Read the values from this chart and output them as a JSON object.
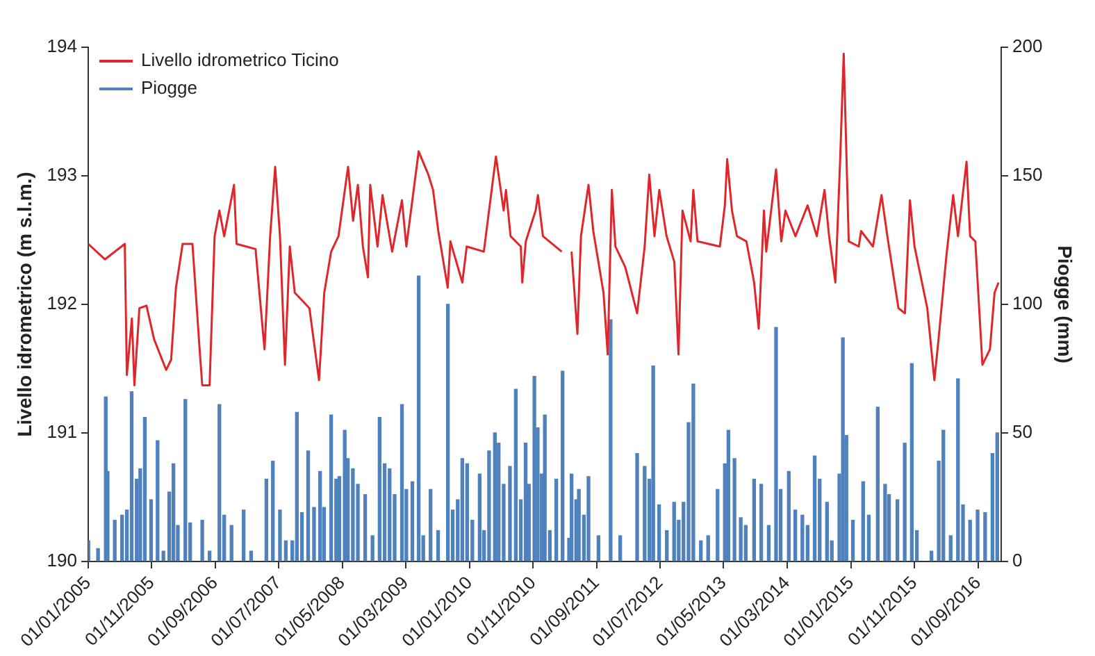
{
  "chart_data": {
    "type": "line",
    "ylabel": "Livello idrometrico (m s.l.m.)",
    "y2label": "Piogge (mm)",
    "xlim": [
      "2005-01-01",
      "2016-12-20"
    ],
    "xticks": [
      {
        "value": "2005-01-01",
        "label": "01/01/2005"
      },
      {
        "value": "2005-11-01",
        "label": "01/11/2005"
      },
      {
        "value": "2006-09-01",
        "label": "01/09/2006"
      },
      {
        "value": "2007-07-01",
        "label": "01/07/2007"
      },
      {
        "value": "2008-05-01",
        "label": "01/05/2008"
      },
      {
        "value": "2009-03-01",
        "label": "01/03/2009"
      },
      {
        "value": "2010-01-01",
        "label": "01/01/2010"
      },
      {
        "value": "2010-11-01",
        "label": "01/11/2010"
      },
      {
        "value": "2011-09-01",
        "label": "01/09/2011"
      },
      {
        "value": "2012-07-01",
        "label": "01/07/2012"
      },
      {
        "value": "2013-05-01",
        "label": "01/05/2013"
      },
      {
        "value": "2014-03-01",
        "label": "01/03/2014"
      },
      {
        "value": "2015-01-01",
        "label": "01/01/2015"
      },
      {
        "value": "2015-11-01",
        "label": "01/11/2015"
      },
      {
        "value": "2016-09-01",
        "label": "01/09/2016"
      }
    ],
    "ylim": [
      190,
      194
    ],
    "yticks": [
      190,
      191,
      192,
      193,
      194
    ],
    "y2lim": [
      0,
      200
    ],
    "y2ticks": [
      0,
      50,
      100,
      150,
      200
    ],
    "grid": false,
    "legend": "top left",
    "marker": "none",
    "line_style": "solid",
    "series": [
      {
        "name": "Livello idrometrico Ticino",
        "color": "#e0262b",
        "x": [
          "2005-01-01",
          "2005-03-22",
          "2005-06-25",
          "2005-07-05",
          "2005-07-29",
          "2005-08-10",
          "2005-09-03",
          "2005-10-07",
          "2005-11-12",
          "2006-01-09",
          "2006-02-02",
          "2006-02-25",
          "2006-03-29",
          "2006-05-15",
          "2006-06-20",
          "2006-07-01",
          "2006-08-05",
          "2006-08-29",
          "2006-09-21",
          "2006-10-14",
          "2006-11-30",
          "2006-12-12",
          "2007-03-13",
          "2007-04-25",
          "2007-05-22",
          "2007-06-15",
          "2007-07-08",
          "2007-08-01",
          "2007-08-24",
          "2007-09-17",
          "2007-11-26",
          "2008-01-11",
          "2008-02-05",
          "2008-03-09",
          "2008-04-13",
          "2008-05-29",
          "2008-06-22",
          "2008-07-15",
          "2008-08-08",
          "2008-09-01",
          "2008-09-12",
          "2008-10-17",
          "2008-11-10",
          "2008-12-26",
          "2009-02-11",
          "2009-03-04",
          "2009-05-02",
          "2009-06-17",
          "2009-07-10",
          "2009-08-04",
          "2009-09-18",
          "2009-10-01",
          "2009-11-27",
          "2009-12-18",
          "2010-03-10",
          "2010-04-04",
          "2010-05-07",
          "2010-06-13",
          "2010-06-24",
          "2010-07-16",
          "2010-09-03",
          "2010-09-10",
          "2010-09-27",
          "2010-11-13",
          "2010-11-24",
          "2010-12-18",
          "2011-03-18",
          "2011-04-15",
          "2011-05-04",
          "2011-06-01",
          "2011-06-18",
          "2011-07-24",
          "2011-08-16",
          "2011-10-04",
          "2011-10-24",
          "2011-11-13",
          "2011-11-30",
          "2012-01-16",
          "2012-03-13",
          "2012-04-18",
          "2012-05-10",
          "2012-06-04",
          "2012-06-27",
          "2012-08-01",
          "2012-09-07",
          "2012-09-27",
          "2012-10-16",
          "2012-11-24",
          "2012-12-07",
          "2012-12-27",
          "2013-04-13",
          "2013-05-07",
          "2013-05-18",
          "2013-06-10",
          "2013-07-04",
          "2013-08-18",
          "2013-09-24",
          "2013-10-16",
          "2013-11-10",
          "2013-11-21",
          "2014-01-07",
          "2014-02-01",
          "2014-02-21",
          "2014-04-10",
          "2014-06-07",
          "2014-07-21",
          "2014-08-27",
          "2014-09-18",
          "2014-10-18",
          "2014-11-10",
          "2014-11-27",
          "2014-12-21",
          "2015-02-07",
          "2015-02-18",
          "2015-04-16",
          "2015-05-27",
          "2015-06-24",
          "2015-08-16",
          "2015-09-16",
          "2015-10-10",
          "2015-11-01",
          "2016-01-01",
          "2016-02-04",
          "2016-02-24",
          "2016-04-01",
          "2016-05-04",
          "2016-05-27",
          "2016-07-07",
          "2016-07-24",
          "2016-08-18",
          "2016-09-21",
          "2016-10-27",
          "2016-11-18",
          "2016-12-07"
        ],
        "values": [
          192.47,
          192.35,
          192.47,
          191.45,
          191.89,
          191.37,
          191.97,
          191.99,
          191.73,
          191.49,
          191.57,
          192.13,
          192.47,
          192.47,
          191.61,
          191.37,
          191.37,
          192.53,
          192.73,
          192.53,
          192.93,
          192.47,
          192.43,
          191.65,
          192.53,
          193.07,
          192.53,
          191.53,
          192.45,
          192.09,
          191.97,
          191.41,
          192.09,
          192.41,
          192.53,
          193.07,
          192.65,
          192.93,
          192.45,
          192.21,
          192.93,
          192.45,
          192.85,
          192.41,
          192.81,
          192.45,
          193.19,
          193.01,
          192.89,
          192.57,
          192.13,
          192.49,
          192.17,
          192.45,
          192.41,
          192.73,
          193.15,
          192.73,
          192.89,
          192.53,
          192.45,
          192.17,
          192.49,
          192.73,
          192.85,
          192.53,
          192.41,
          null,
          192.41,
          191.77,
          192.53,
          192.93,
          192.57,
          192.09,
          191.61,
          192.89,
          192.45,
          192.29,
          191.93,
          192.45,
          193.01,
          192.53,
          192.89,
          192.53,
          192.33,
          191.61,
          192.73,
          192.49,
          192.89,
          192.49,
          192.45,
          192.77,
          193.13,
          192.73,
          192.53,
          192.49,
          192.17,
          191.81,
          192.73,
          192.41,
          193.05,
          192.49,
          192.73,
          192.53,
          192.77,
          192.53,
          192.89,
          192.53,
          192.17,
          193.13,
          193.95,
          192.49,
          192.45,
          192.57,
          192.45,
          192.85,
          192.53,
          191.97,
          191.93,
          192.81,
          192.45,
          191.97,
          191.41,
          191.73,
          192.37,
          192.85,
          192.53,
          193.11,
          192.53,
          192.49,
          191.53,
          191.65,
          192.09,
          192.17
        ]
      },
      {
        "name": "Piogge",
        "type": "bar",
        "axis": "y2",
        "color": "#4f81bd",
        "x": [
          "2005-01-02",
          "2005-02-17",
          "2005-03-26",
          "2005-04-04",
          "2005-05-08",
          "2005-06-12",
          "2005-07-05",
          "2005-07-28",
          "2005-08-21",
          "2005-09-07",
          "2005-09-29",
          "2005-10-29",
          "2005-11-29",
          "2005-12-27",
          "2006-01-24",
          "2006-02-13",
          "2006-03-06",
          "2006-04-11",
          "2006-05-04",
          "2006-07-01",
          "2006-08-05",
          "2006-09-21",
          "2006-10-14",
          "2006-11-18",
          "2007-01-15",
          "2007-02-20",
          "2007-05-04",
          "2007-06-04",
          "2007-07-08",
          "2007-08-05",
          "2007-09-05",
          "2007-09-27",
          "2007-10-21",
          "2007-11-20",
          "2007-12-18",
          "2008-01-16",
          "2008-02-04",
          "2008-03-09",
          "2008-04-02",
          "2008-04-17",
          "2008-05-13",
          "2008-05-28",
          "2008-06-21",
          "2008-07-15",
          "2008-08-19",
          "2008-09-23",
          "2008-10-27",
          "2008-11-20",
          "2008-12-14",
          "2009-01-07",
          "2009-02-11",
          "2009-03-04",
          "2009-04-02",
          "2009-05-02",
          "2009-05-24",
          "2009-06-28",
          "2009-08-03",
          "2009-09-19",
          "2009-10-12",
          "2009-11-05",
          "2009-11-27",
          "2009-12-20",
          "2010-01-14",
          "2010-02-18",
          "2010-03-11",
          "2010-04-04",
          "2010-05-02",
          "2010-05-20",
          "2010-06-13",
          "2010-07-13",
          "2010-08-10",
          "2010-09-03",
          "2010-09-26",
          "2010-10-12",
          "2010-11-07",
          "2010-11-23",
          "2010-12-12",
          "2010-12-27",
          "2011-01-20",
          "2011-02-20",
          "2011-03-22",
          "2011-04-22",
          "2011-05-04",
          "2011-05-26",
          "2011-06-08",
          "2011-07-02",
          "2011-07-24",
          "2011-09-10",
          "2011-11-07",
          "2011-12-23",
          "2012-03-13",
          "2012-04-18",
          "2012-05-11",
          "2012-05-29",
          "2012-06-26",
          "2012-08-02",
          "2012-09-06",
          "2012-09-28",
          "2012-10-21",
          "2012-11-14",
          "2012-12-07",
          "2013-01-12",
          "2013-02-16",
          "2013-04-02",
          "2013-05-07",
          "2013-05-24",
          "2013-06-22",
          "2013-07-22",
          "2013-08-15",
          "2013-09-24",
          "2013-10-28",
          "2013-12-03",
          "2014-01-07",
          "2014-01-29",
          "2014-03-09",
          "2014-04-09",
          "2014-05-13",
          "2014-06-07",
          "2014-07-11",
          "2014-08-04",
          "2014-09-08",
          "2014-10-01",
          "2014-11-06",
          "2014-11-23",
          "2014-12-10",
          "2015-01-10",
          "2015-02-28",
          "2015-03-27",
          "2015-05-09",
          "2015-06-13",
          "2015-07-02",
          "2015-08-11",
          "2015-09-15",
          "2015-10-19",
          "2015-11-12",
          "2016-01-21",
          "2016-02-25",
          "2016-03-18",
          "2016-04-22",
          "2016-05-27",
          "2016-06-20",
          "2016-07-24",
          "2016-08-29",
          "2016-10-04",
          "2016-11-08",
          "2016-12-01"
        ],
        "values": [
          8,
          5,
          64,
          35,
          16,
          18,
          20,
          66,
          32,
          36,
          56,
          24,
          47,
          4,
          27,
          38,
          14,
          63,
          15,
          16,
          4,
          61,
          18,
          14,
          20,
          4,
          32,
          39,
          20,
          8,
          8,
          58,
          19,
          43,
          21,
          35,
          21,
          57,
          32,
          33,
          51,
          40,
          36,
          30,
          26,
          10,
          56,
          38,
          36,
          26,
          61,
          28,
          31,
          111,
          10,
          28,
          12,
          100,
          20,
          24,
          40,
          38,
          16,
          34,
          12,
          43,
          50,
          46,
          30,
          37,
          67,
          24,
          46,
          30,
          72,
          52,
          34,
          57,
          12,
          32,
          74,
          9,
          34,
          24,
          28,
          18,
          33,
          10,
          94,
          10,
          42,
          37,
          32,
          76,
          22,
          12,
          23,
          16,
          23,
          54,
          69,
          8,
          10,
          28,
          38,
          51,
          40,
          17,
          14,
          32,
          30,
          14,
          91,
          28,
          35,
          20,
          18,
          14,
          41,
          32,
          23,
          8,
          34,
          87,
          49,
          16,
          31,
          18,
          60,
          30,
          26,
          24,
          46,
          77,
          12,
          4,
          39,
          51,
          10,
          71,
          22,
          16,
          20,
          19,
          42,
          50
        ]
      }
    ]
  }
}
